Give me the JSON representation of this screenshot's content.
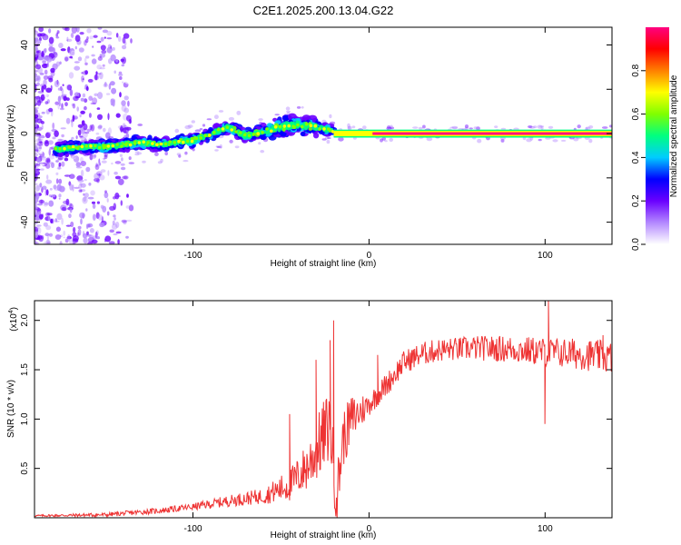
{
  "title": "C2E1.2025.200.13.04.G22",
  "chart_data": [
    {
      "type": "heatmap",
      "xlabel": "Height of straight line (km)",
      "ylabel": "Frequency (Hz)",
      "xlim": [
        -190,
        138
      ],
      "ylim": [
        -50,
        48
      ],
      "xticks": [
        -100,
        0,
        100
      ],
      "yticks": [
        -40,
        -20,
        0,
        20,
        40
      ],
      "colorbar": {
        "label": "Normalized spectral amplitude",
        "range": [
          0,
          1
        ],
        "ticks": [
          "0.0",
          "0.2",
          "0.4",
          "0.6",
          "0.8"
        ],
        "colors": [
          "#ffffff",
          "#b388ff",
          "#6a00ff",
          "#0000ff",
          "#00ccff",
          "#00ff80",
          "#80ff00",
          "#ffff00",
          "#ff8000",
          "#ff0000",
          "#ff0080"
        ]
      },
      "ridge": {
        "x": [
          -175,
          -160,
          -150,
          -140,
          -130,
          -120,
          -110,
          -100,
          -90,
          -80,
          -70,
          -60,
          -50,
          -40,
          -30,
          -25,
          -20,
          -10,
          0,
          50,
          100,
          138
        ],
        "y": [
          -7,
          -6,
          -6,
          -5,
          -4,
          -5,
          -4,
          -3,
          0,
          3,
          -1,
          1,
          3,
          4,
          3,
          2,
          1,
          0,
          0,
          0,
          0,
          0
        ]
      },
      "grid": false
    },
    {
      "type": "line",
      "xlabel": "Height of straight line (km)",
      "ylabel": "SNR (10 * v/v)",
      "scale_label": "(x10",
      "scale_exp": "4",
      "xlim": [
        -190,
        138
      ],
      "ylim": [
        0,
        2.2
      ],
      "xticks": [
        -100,
        0,
        100
      ],
      "yticks": [
        "0.5",
        "1.0",
        "1.5",
        "2.0"
      ],
      "series": [
        {
          "color": "#ee3333",
          "trend_x": [
            -190,
            -150,
            -120,
            -100,
            -80,
            -60,
            -45,
            -35,
            -28,
            -22,
            -20,
            -18,
            -15,
            -10,
            0,
            10,
            20,
            30,
            40,
            60,
            80,
            100,
            120,
            138
          ],
          "trend_y": [
            0.02,
            0.03,
            0.07,
            0.11,
            0.17,
            0.22,
            0.33,
            0.52,
            0.75,
            0.95,
            0.45,
            0.25,
            0.78,
            1.0,
            1.15,
            1.35,
            1.58,
            1.66,
            1.7,
            1.72,
            1.71,
            1.68,
            1.66,
            1.62
          ],
          "noise_x": [
            -190,
            -100,
            -60,
            -40,
            -25,
            -10,
            0,
            50,
            138
          ],
          "noise_y": [
            0.01,
            0.035,
            0.08,
            0.2,
            0.38,
            0.25,
            0.12,
            0.12,
            0.17
          ],
          "spikes": [
            [
              -20,
              2.0
            ],
            [
              -22,
              1.8
            ],
            [
              -30,
              1.6
            ],
            [
              -45,
              1.05
            ],
            [
              5,
              1.65
            ],
            [
              102,
              2.2
            ],
            [
              100,
              0.95
            ],
            [
              133,
              1.85
            ]
          ]
        }
      ]
    }
  ]
}
